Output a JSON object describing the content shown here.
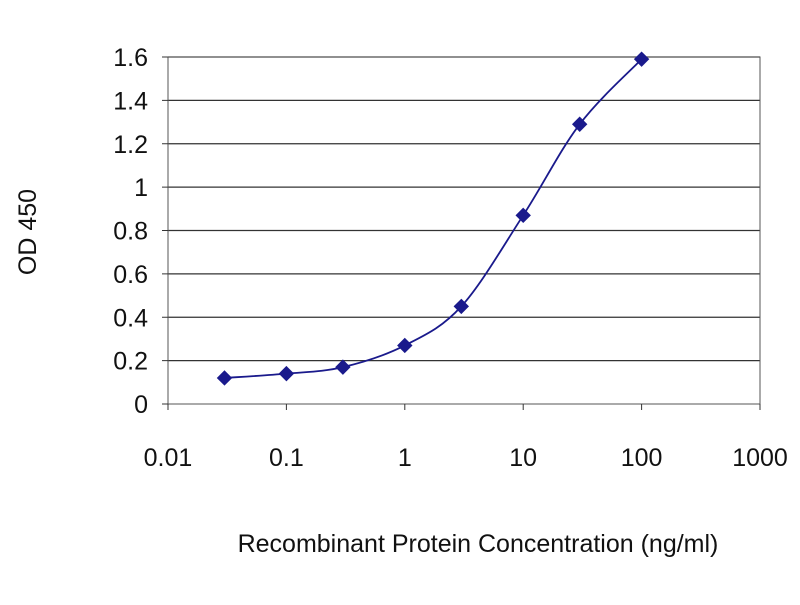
{
  "chart_data": {
    "type": "line",
    "xscale": "log",
    "xlim": [
      0.01,
      1000
    ],
    "ylim": [
      0,
      1.6
    ],
    "grid": true,
    "legend": "none",
    "title": "",
    "xlabel": "Recombinant Protein Concentration (ng/ml)",
    "ylabel": "OD 450",
    "x_ticks": [
      0.01,
      0.1,
      1,
      10,
      100,
      1000
    ],
    "x_tick_labels": [
      "0.01",
      "0.1",
      "1",
      "10",
      "100",
      "1000"
    ],
    "y_ticks": [
      0,
      0.2,
      0.4,
      0.6,
      0.8,
      1,
      1.2,
      1.4,
      1.6
    ],
    "y_tick_labels": [
      "0",
      "0.2",
      "0.4",
      "0.6",
      "0.8",
      "1",
      "1.2",
      "1.4",
      "1.6"
    ],
    "series": [
      {
        "color": "#1a1a8c",
        "x": [
          0.03,
          0.1,
          0.3,
          1,
          3,
          10,
          30,
          100
        ],
        "y": [
          0.12,
          0.14,
          0.17,
          0.27,
          0.45,
          0.87,
          1.29,
          1.59
        ]
      }
    ]
  }
}
